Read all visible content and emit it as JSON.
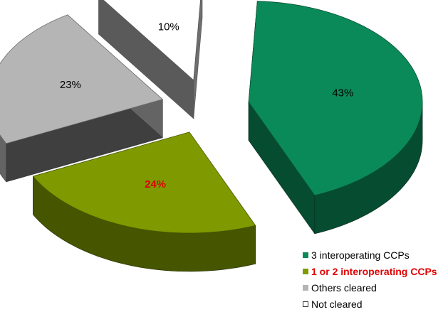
{
  "chart_data": {
    "type": "pie",
    "title": "",
    "categories": [
      "3 interoperating CCPs",
      "1 or 2 interoperating CCPs",
      "Others cleared",
      "Not cleared"
    ],
    "values": [
      43,
      24,
      23,
      10
    ],
    "value_labels": [
      "43%",
      "24%",
      "23%",
      "10%"
    ],
    "colors": [
      "#0b8a59",
      "#7f9a00",
      "#b5b5b5",
      "#ffffff"
    ],
    "highlight_color": "#e00000",
    "highlighted_category": "1 or 2 interoperating CCPs",
    "exploded": true,
    "three_d": true,
    "legend_position": "bottom-right"
  }
}
